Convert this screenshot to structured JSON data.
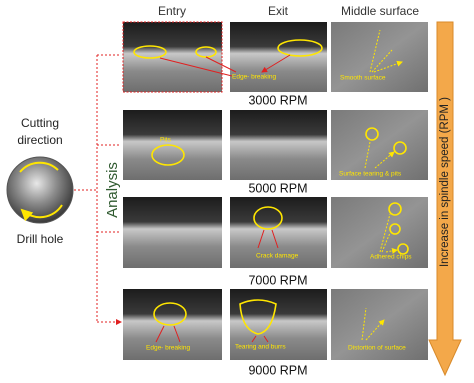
{
  "header": {
    "entry": "Entry",
    "exit": "Exit",
    "middle": "Middle surface"
  },
  "left": {
    "cutting_direction": [
      "Cutting",
      "direction"
    ],
    "drill_hole": "Drill hole",
    "analysis": "Analysis"
  },
  "side_arrow": "Increase in spindle speed  (RPM )",
  "rows": [
    {
      "speed": "3000 RPM",
      "annotations": [
        "Edge- breaking",
        "Smooth surface"
      ]
    },
    {
      "speed": "5000 RPM",
      "annotations": [
        "Pits",
        "Surface tearing  & pits"
      ]
    },
    {
      "speed": "7000 RPM",
      "annotations": [
        "Crack damage",
        "Adhered chips"
      ]
    },
    {
      "speed": "9000 RPM",
      "annotations": [
        "Edge- breaking",
        "Tearing and burrs",
        "Distortion of surface"
      ]
    }
  ]
}
